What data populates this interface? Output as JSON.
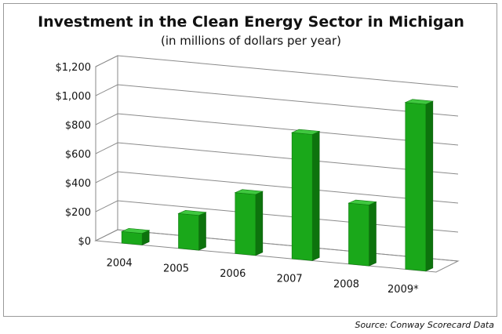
{
  "chart_data": {
    "type": "bar",
    "title": "Investment in the Clean Energy Sector in Michigan",
    "subtitle": "(in millions of dollars per year)",
    "xlabel": "",
    "ylabel": "",
    "categories": [
      "2004",
      "2005",
      "2006",
      "2007",
      "2008",
      "2009*"
    ],
    "values": [
      80,
      240,
      420,
      870,
      420,
      1150
    ],
    "ylim": [
      0,
      1200
    ],
    "yticks": [
      0,
      200,
      400,
      600,
      800,
      1000,
      1200
    ],
    "ytick_labels": [
      "$0",
      "$200",
      "$400",
      "$600",
      "$800",
      "$1,000",
      "$1,200"
    ],
    "grid": true,
    "legend": "none",
    "style": "3d-columns",
    "bar_color": "#1aa81a"
  },
  "source": "Source:  Conway Scorecard Data"
}
